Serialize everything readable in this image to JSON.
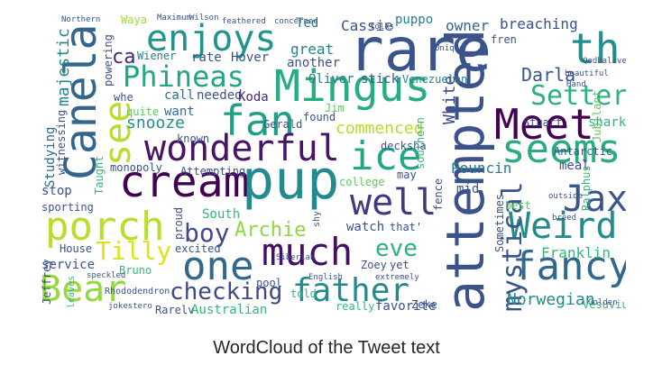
{
  "caption": "WordCloud of the Tweet text",
  "words": [
    {
      "text": "rare",
      "color": "#3a558c"
    },
    {
      "text": "enjoys",
      "color": "#20938c"
    },
    {
      "text": "th",
      "color": "#218f8d"
    },
    {
      "text": "Canela",
      "color": "#32668e"
    },
    {
      "text": "Mingus",
      "color": "#26ad81"
    },
    {
      "text": "fan",
      "color": "#1f9f88"
    },
    {
      "text": "Meet",
      "color": "#440154"
    },
    {
      "text": "Setter",
      "color": "#2db27d"
    },
    {
      "text": "Phineas",
      "color": "#22a785"
    },
    {
      "text": "see",
      "color": "#b8de29"
    },
    {
      "text": "wonderful",
      "color": "#481467"
    },
    {
      "text": "seems",
      "color": "#27ad81"
    },
    {
      "text": "ice",
      "color": "#22a884"
    },
    {
      "text": "cream",
      "color": "#440154"
    },
    {
      "text": "pup",
      "color": "#238a8d"
    },
    {
      "text": "well",
      "color": "#453781"
    },
    {
      "text": "attempted",
      "color": "#3b528b"
    },
    {
      "text": "Jax",
      "color": "#39568c"
    },
    {
      "text": "porch",
      "color": "#b8de29"
    },
    {
      "text": "boy",
      "color": "#3e4a89"
    },
    {
      "text": "Archie",
      "color": "#8fd744"
    },
    {
      "text": "eve",
      "color": "#2db27d"
    },
    {
      "text": "Weird",
      "color": "#238a8d"
    },
    {
      "text": "mystical",
      "color": "#39568c"
    },
    {
      "text": "much",
      "color": "#471063"
    },
    {
      "text": "one",
      "color": "#31688e"
    },
    {
      "text": "Tilly",
      "color": "#dde318"
    },
    {
      "text": "fancy",
      "color": "#31688e"
    },
    {
      "text": "Bear",
      "color": "#95d840"
    },
    {
      "text": "checking",
      "color": "#3e4989"
    },
    {
      "text": "father",
      "color": "#238a8d"
    },
    {
      "text": "Norwegian",
      "color": "#238a8d"
    },
    {
      "text": "snooze",
      "color": "#21918c"
    },
    {
      "text": "majestic",
      "color": "#25848e"
    },
    {
      "text": "commenced",
      "color": "#b5de2b"
    },
    {
      "text": "White",
      "color": "#3e4a89"
    },
    {
      "text": "Darla",
      "color": "#39568c"
    },
    {
      "text": "Oliver",
      "color": "#287d8e"
    },
    {
      "text": "stick",
      "color": "#3b528b"
    },
    {
      "text": "Venezuelan",
      "color": "#25848e"
    },
    {
      "text": "another",
      "color": "#3b528b"
    },
    {
      "text": "great",
      "color": "#26828e"
    },
    {
      "text": "Cassie",
      "color": "#3b528b"
    },
    {
      "text": "Ted",
      "color": "#2a788e"
    },
    {
      "text": "puppo",
      "color": "#287d8e"
    },
    {
      "text": "owner",
      "color": "#31688e"
    },
    {
      "text": "breaching",
      "color": "#3b528b"
    },
    {
      "text": "Waya",
      "color": "#a0da39"
    },
    {
      "text": "ca",
      "color": "#482878"
    },
    {
      "text": "Wiener",
      "color": "#2a778e"
    },
    {
      "text": "rate",
      "color": "#3b528b"
    },
    {
      "text": "Hover",
      "color": "#3b528b"
    },
    {
      "text": "powering",
      "color": "#3b528b"
    },
    {
      "text": "whe",
      "color": "#3b528b"
    },
    {
      "text": "call",
      "color": "#2e6e8e"
    },
    {
      "text": "needed",
      "color": "#3b528b"
    },
    {
      "text": "Koda",
      "color": "#472a7a"
    },
    {
      "text": "want",
      "color": "#2e6e8e"
    },
    {
      "text": "quite",
      "color": "#5ec962"
    },
    {
      "text": "known",
      "color": "#3b528b"
    },
    {
      "text": "Gerald",
      "color": "#3b528b"
    },
    {
      "text": "found",
      "color": "#3b528b"
    },
    {
      "text": "Jim",
      "color": "#5ec962"
    },
    {
      "text": "decksha",
      "color": "#3b528b"
    },
    {
      "text": "Studying",
      "color": "#31688e"
    },
    {
      "text": "witnessing",
      "color": "#3b528b"
    },
    {
      "text": "monopoly",
      "color": "#3b528b"
    },
    {
      "text": "Attempting",
      "color": "#3b528b"
    },
    {
      "text": "stop",
      "color": "#3b528b"
    },
    {
      "text": "sporting",
      "color": "#3b528b"
    },
    {
      "text": "Taught",
      "color": "#35b779"
    },
    {
      "text": "South",
      "color": "#35b779"
    },
    {
      "text": "proud",
      "color": "#3b528b"
    },
    {
      "text": "excited",
      "color": "#3b528b"
    },
    {
      "text": "Bruno",
      "color": "#35b779"
    },
    {
      "text": "House",
      "color": "#3b528b"
    },
    {
      "text": "service",
      "color": "#3b528b"
    },
    {
      "text": "Jeffrey",
      "color": "#3b528b"
    },
    {
      "text": "Rarely",
      "color": "#3b528b"
    },
    {
      "text": "Australian",
      "color": "#35b779"
    },
    {
      "text": "pool",
      "color": "#3b528b"
    },
    {
      "text": "told",
      "color": "#35b779"
    },
    {
      "text": "really",
      "color": "#35b779"
    },
    {
      "text": "favorite",
      "color": "#3b528b"
    },
    {
      "text": "Zeke",
      "color": "#3b528b"
    },
    {
      "text": "Zoey",
      "color": "#3b528b"
    },
    {
      "text": "yet",
      "color": "#3b528b"
    },
    {
      "text": "watch",
      "color": "#3b528b"
    },
    {
      "text": "that'",
      "color": "#3b528b"
    },
    {
      "text": "college",
      "color": "#5ec962"
    },
    {
      "text": "fence",
      "color": "#3b528b"
    },
    {
      "text": "may",
      "color": "#3b528b"
    },
    {
      "text": "southern",
      "color": "#35b779"
    },
    {
      "text": "Pouncin",
      "color": "#2a788e"
    },
    {
      "text": "mid",
      "color": "#3b528b"
    },
    {
      "text": "meal",
      "color": "#3b528b"
    },
    {
      "text": "Antarctic",
      "color": "#3b528b"
    },
    {
      "text": "best",
      "color": "#5ec962"
    },
    {
      "text": "Franklin",
      "color": "#35b779"
    },
    {
      "text": "Sometimes",
      "color": "#3b528b"
    },
    {
      "text": "Stuart",
      "color": "#3b528b"
    },
    {
      "text": "shark",
      "color": "#35b779"
    },
    {
      "text": "Jubilant",
      "color": "#5ec962"
    },
    {
      "text": "Ralphus",
      "color": "#35b779"
    },
    {
      "text": "Vesuvius",
      "color": "#35b779"
    },
    {
      "text": "fren",
      "color": "#3b528b"
    },
    {
      "text": "shy",
      "color": "#3b528b"
    },
    {
      "text": "Rhododendron",
      "color": "#3b528b"
    },
    {
      "text": "speckled",
      "color": "#3b528b"
    },
    {
      "text": "leaves",
      "color": "#35b779"
    },
    {
      "text": "jokestero",
      "color": "#3b528b"
    },
    {
      "text": "Siberian",
      "color": "#3b528b"
    },
    {
      "text": "English",
      "color": "#3b528b"
    },
    {
      "text": "extremely",
      "color": "#3b528b"
    },
    {
      "text": "breed",
      "color": "#3b528b"
    },
    {
      "text": "outside",
      "color": "#3b528b"
    },
    {
      "text": "Unique",
      "color": "#3b528b"
    },
    {
      "text": "beautiful",
      "color": "#3b528b"
    },
    {
      "text": "Hand",
      "color": "#3b528b"
    },
    {
      "text": "folks",
      "color": "#3b528b"
    },
    {
      "text": "concerned",
      "color": "#3b528b"
    },
    {
      "text": "Northern",
      "color": "#3b528b"
    },
    {
      "text": "Maximum",
      "color": "#3b528b"
    },
    {
      "text": "Wilson",
      "color": "#3b528b"
    },
    {
      "text": "feathered",
      "color": "#3b528b"
    },
    {
      "text": "Golden",
      "color": "#3b528b"
    },
    {
      "text": "Qodbalives",
      "color": "#3b528b"
    }
  ]
}
